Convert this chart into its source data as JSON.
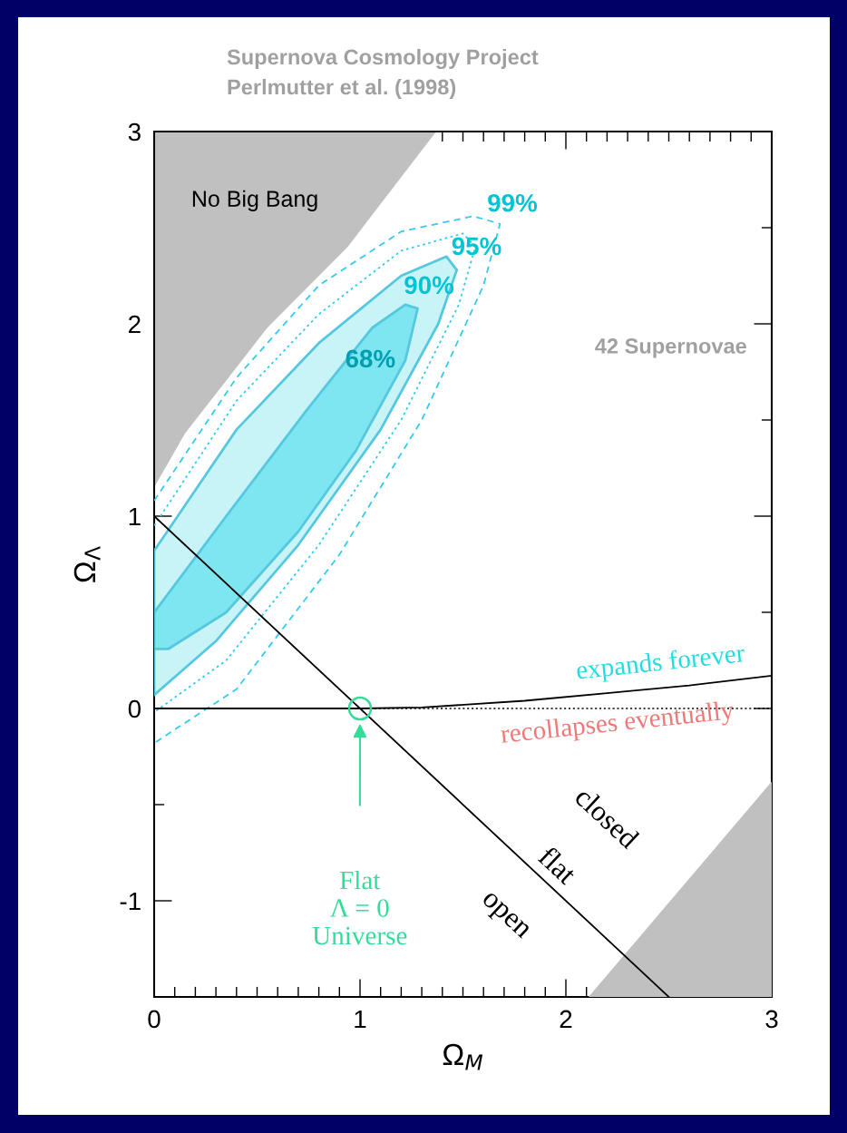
{
  "chart_data": {
    "type": "line",
    "title": "Supernova Cosmology Project",
    "subtitle": "Perlmutter et al. (1998)",
    "xlabel": "Ω$_{M}$",
    "ylabel": "Ω$_{Λ}$",
    "xlim": [
      0,
      3
    ],
    "ylim": [
      -1.5,
      3
    ],
    "xticks": [
      0,
      {
        "value": 0.1,
        "label": null
      },
      {
        "value": 0.2,
        "label": null
      },
      {
        "value": 0.3,
        "label": null
      },
      {
        "value": 0.4,
        "label": null
      },
      {
        "value": 0.5,
        "label": null
      },
      {
        "value": 0.6,
        "label": null
      },
      {
        "value": 0.7,
        "label": null
      },
      {
        "value": 0.8,
        "label": null
      },
      {
        "value": 0.9,
        "label": null
      },
      1,
      {
        "value": 1.1,
        "label": null
      },
      {
        "value": 1.2,
        "label": null
      },
      {
        "value": 1.3,
        "label": null
      },
      {
        "value": 1.4,
        "label": null
      },
      {
        "value": 1.5,
        "label": null
      },
      {
        "value": 1.6,
        "label": null
      },
      {
        "value": 1.7,
        "label": null
      },
      {
        "value": 1.8,
        "label": null
      },
      {
        "value": 1.9,
        "label": null
      },
      2,
      {
        "value": 2.1,
        "label": null
      },
      {
        "value": 2.2,
        "label": null
      },
      {
        "value": 2.3,
        "label": null
      },
      {
        "value": 2.4,
        "label": null
      },
      {
        "value": 2.5,
        "label": null
      },
      {
        "value": 2.6,
        "label": null
      },
      {
        "value": 2.7,
        "label": null
      },
      {
        "value": 2.8,
        "label": null
      },
      {
        "value": 2.9,
        "label": null
      },
      3
    ],
    "yticks": [
      {
        "value": -1.5,
        "label": null
      },
      -1,
      {
        "value": -0.5,
        "label": null
      },
      0,
      {
        "value": 0.5,
        "label": null
      },
      1,
      {
        "value": 1.5,
        "label": null
      },
      2,
      {
        "value": 2.5,
        "label": null
      },
      3
    ],
    "grid": false,
    "series": [
      {
        "type": "area",
        "color": "#c0c0c0",
        "x": [
          0,
          0.15,
          0.55,
          0.94,
          1.37,
          0
        ],
        "values": [
          1.15,
          1.43,
          1.98,
          2.4,
          3.0,
          3.0
        ]
      },
      {
        "type": "area",
        "color": "#c0c0c0",
        "x": [
          2.11,
          3,
          3
        ],
        "values": [
          -1.5,
          -0.38,
          -1.5
        ]
      },
      {
        "color": "#33ccee",
        "line_style": "dashed",
        "x": [
          0,
          0.4,
          0.8,
          1.2,
          1.55,
          1.68,
          1.6,
          1.3,
          0.9,
          0.4,
          0
        ],
        "values": [
          1.08,
          1.72,
          2.2,
          2.48,
          2.56,
          2.52,
          2.2,
          1.5,
          0.8,
          0.1,
          -0.18
        ]
      },
      {
        "color": "#33ccee",
        "line_style": "dotted",
        "x": [
          0,
          0.4,
          0.8,
          1.2,
          1.5,
          1.56,
          1.48,
          1.2,
          0.8,
          0.35,
          0
        ],
        "values": [
          0.95,
          1.6,
          2.05,
          2.38,
          2.47,
          2.4,
          2.1,
          1.5,
          0.85,
          0.25,
          -0.02
        ]
      },
      {
        "type": "area",
        "color": "#c8f4f8",
        "line_style": "solid",
        "x": [
          0,
          0.4,
          0.8,
          1.2,
          1.42,
          1.47,
          1.38,
          1.1,
          0.7,
          0.3,
          0
        ],
        "values": [
          0.82,
          1.45,
          1.9,
          2.25,
          2.35,
          2.28,
          2.0,
          1.45,
          0.85,
          0.35,
          0.07
        ]
      },
      {
        "type": "area",
        "color": "#7ee6f0",
        "line_style": "solid",
        "x": [
          0,
          0.35,
          0.74,
          1.06,
          1.22,
          1.28,
          1.22,
          0.98,
          0.7,
          0.35,
          0.07,
          0
        ],
        "values": [
          0.5,
          1.0,
          1.55,
          1.98,
          2.1,
          2.08,
          1.81,
          1.34,
          0.92,
          0.5,
          0.31,
          0.31
        ]
      },
      {
        "color": "#000000",
        "line_style": "solid",
        "x": [
          0,
          2.5
        ],
        "values": [
          1,
          -1.5
        ]
      },
      {
        "color": "#000000",
        "line_style": "solid",
        "x": [
          0,
          1,
          1.3,
          1.8,
          2.2,
          2.6,
          3
        ],
        "values": [
          0,
          0,
          0.005,
          0.04,
          0.08,
          0.12,
          0.17
        ]
      },
      {
        "type": "scatter",
        "color": "#33dd99",
        "marker": "circle",
        "x": [
          1
        ],
        "values": [
          0
        ]
      }
    ],
    "ref_lines": [
      {
        "axis": "y",
        "value": 0,
        "color": "#000000",
        "line_style": "dotted"
      }
    ],
    "annotations": [
      "68%",
      "90%",
      "95%",
      "99%",
      "No Big Bang",
      "42 Supernovae",
      "expands forever",
      "recollapses eventually",
      "closed",
      "flat",
      "open",
      "Flat\nΛ = 0\nUniverse"
    ]
  }
}
